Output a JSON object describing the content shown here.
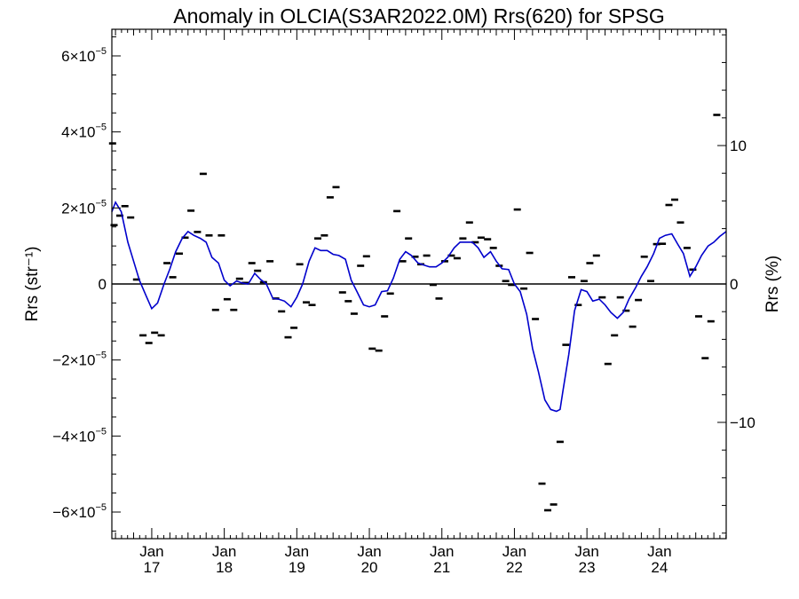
{
  "chart_data": {
    "type": "scatter",
    "title": "Anomaly in OLCIA(S3AR2022.0M) Rrs(620) for SPSG",
    "ylabel_left": "Rrs (str⁻¹)",
    "ylabel_right": "Rrs (%)",
    "x_unit": "decimal year",
    "xlim": [
      2016.45,
      2024.92
    ],
    "ylim_left": [
      -6.7e-05,
      6.7e-05
    ],
    "ylim_right": [
      -18.4,
      18.4
    ],
    "x_ticks": [
      {
        "x": 2017.0,
        "top": "Jan",
        "bottom": "17"
      },
      {
        "x": 2018.0,
        "top": "Jan",
        "bottom": "18"
      },
      {
        "x": 2019.0,
        "top": "Jan",
        "bottom": "19"
      },
      {
        "x": 2020.0,
        "top": "Jan",
        "bottom": "20"
      },
      {
        "x": 2021.0,
        "top": "Jan",
        "bottom": "21"
      },
      {
        "x": 2022.0,
        "top": "Jan",
        "bottom": "22"
      },
      {
        "x": 2023.0,
        "top": "Jan",
        "bottom": "23"
      },
      {
        "x": 2024.0,
        "top": "Jan",
        "bottom": "24"
      }
    ],
    "y_ticks_left": [
      {
        "value": 6e-05,
        "mant": "6×10",
        "exp": "−5"
      },
      {
        "value": 4e-05,
        "mant": "4×10",
        "exp": "−5"
      },
      {
        "value": 2e-05,
        "mant": "2×10",
        "exp": "−5"
      },
      {
        "value": 0,
        "mant": "0",
        "exp": ""
      },
      {
        "value": -2e-05,
        "mant": "−2×10",
        "exp": "−5"
      },
      {
        "value": -4e-05,
        "mant": "−4×10",
        "exp": "−5"
      },
      {
        "value": -6e-05,
        "mant": "−6×10",
        "exp": "−5"
      }
    ],
    "y_ticks_right": [
      {
        "value": 10,
        "label": "10"
      },
      {
        "value": 0,
        "label": "0"
      },
      {
        "value": -10,
        "label": "−10"
      }
    ],
    "series": [
      {
        "type": "scatter",
        "marker": "dash",
        "color": "#000000",
        "points": [
          [
            2016.46,
            3.7e-05
          ],
          [
            2016.48,
            1.55e-05
          ],
          [
            2016.56,
            1.8e-05
          ],
          [
            2016.63,
            2.05e-05
          ],
          [
            2016.71,
            1.75e-05
          ],
          [
            2016.79,
            1.2e-06
          ],
          [
            2016.88,
            -1.35e-05
          ],
          [
            2016.96,
            -1.55e-05
          ],
          [
            2017.04,
            -1.28e-05
          ],
          [
            2017.13,
            -1.35e-05
          ],
          [
            2017.21,
            5.5e-06
          ],
          [
            2017.29,
            1.8e-06
          ],
          [
            2017.38,
            8e-06
          ],
          [
            2017.46,
            1.22e-05
          ],
          [
            2017.54,
            1.93e-05
          ],
          [
            2017.63,
            1.37e-05
          ],
          [
            2017.71,
            2.9e-05
          ],
          [
            2017.79,
            1.28e-05
          ],
          [
            2017.88,
            -6.8e-06
          ],
          [
            2017.96,
            1.28e-05
          ],
          [
            2018.04,
            -4e-06
          ],
          [
            2018.13,
            -6.8e-06
          ],
          [
            2018.21,
            1.4e-06
          ],
          [
            2018.29,
            3e-07
          ],
          [
            2018.38,
            5.5e-06
          ],
          [
            2018.46,
            3.5e-06
          ],
          [
            2018.54,
            5e-07
          ],
          [
            2018.63,
            6e-06
          ],
          [
            2018.71,
            -3.8e-06
          ],
          [
            2018.79,
            -7.2e-06
          ],
          [
            2018.88,
            -1.4e-05
          ],
          [
            2018.96,
            -1.15e-05
          ],
          [
            2019.04,
            5.2e-06
          ],
          [
            2019.13,
            -4.8e-06
          ],
          [
            2019.21,
            -5.5e-06
          ],
          [
            2019.29,
            1.2e-05
          ],
          [
            2019.38,
            1.28e-05
          ],
          [
            2019.46,
            2.28e-05
          ],
          [
            2019.54,
            2.55e-05
          ],
          [
            2019.63,
            -2.2e-06
          ],
          [
            2019.71,
            -4.5e-06
          ],
          [
            2019.79,
            -7.8e-06
          ],
          [
            2019.88,
            4.8e-06
          ],
          [
            2019.96,
            7.3e-06
          ],
          [
            2020.04,
            -1.7e-05
          ],
          [
            2020.13,
            -1.75e-05
          ],
          [
            2020.21,
            -8.5e-06
          ],
          [
            2020.29,
            -2.5e-06
          ],
          [
            2020.38,
            1.92e-05
          ],
          [
            2020.46,
            6e-06
          ],
          [
            2020.54,
            1.2e-05
          ],
          [
            2020.63,
            7.2e-06
          ],
          [
            2020.71,
            5.2e-06
          ],
          [
            2020.79,
            7.5e-06
          ],
          [
            2020.88,
            -2e-07
          ],
          [
            2020.96,
            -3.8e-06
          ],
          [
            2021.04,
            6e-06
          ],
          [
            2021.13,
            7.5e-06
          ],
          [
            2021.21,
            6.8e-06
          ],
          [
            2021.29,
            1.2e-05
          ],
          [
            2021.38,
            1.62e-05
          ],
          [
            2021.46,
            1.1e-05
          ],
          [
            2021.54,
            1.22e-05
          ],
          [
            2021.63,
            1.18e-05
          ],
          [
            2021.71,
            9.5e-06
          ],
          [
            2021.79,
            4.8e-06
          ],
          [
            2021.88,
            8e-07
          ],
          [
            2021.96,
            -2e-07
          ],
          [
            2022.04,
            1.96e-05
          ],
          [
            2022.13,
            -1.2e-06
          ],
          [
            2022.21,
            8.2e-06
          ],
          [
            2022.29,
            -9.2e-06
          ],
          [
            2022.38,
            -5.25e-05
          ],
          [
            2022.46,
            -5.95e-05
          ],
          [
            2022.54,
            -5.8e-05
          ],
          [
            2022.63,
            -4.15e-05
          ],
          [
            2022.71,
            -1.6e-05
          ],
          [
            2022.79,
            1.8e-06
          ],
          [
            2022.88,
            -5.5e-06
          ],
          [
            2022.96,
            8e-07
          ],
          [
            2023.04,
            5.5e-06
          ],
          [
            2023.13,
            7.5e-06
          ],
          [
            2023.21,
            -3.5e-06
          ],
          [
            2023.29,
            -2.1e-05
          ],
          [
            2023.38,
            -1.35e-05
          ],
          [
            2023.46,
            -3.5e-06
          ],
          [
            2023.54,
            -7e-06
          ],
          [
            2023.63,
            -1.12e-05
          ],
          [
            2023.71,
            -4.2e-06
          ],
          [
            2023.79,
            7.2e-06
          ],
          [
            2023.88,
            8e-07
          ],
          [
            2023.96,
            1.05e-05
          ],
          [
            2024.04,
            1.06e-05
          ],
          [
            2024.13,
            2.08e-05
          ],
          [
            2024.21,
            2.22e-05
          ],
          [
            2024.29,
            1.62e-05
          ],
          [
            2024.38,
            9.5e-06
          ],
          [
            2024.46,
            3.8e-06
          ],
          [
            2024.54,
            -8.5e-06
          ],
          [
            2024.63,
            -1.95e-05
          ],
          [
            2024.71,
            -9.8e-06
          ],
          [
            2024.79,
            4.45e-05
          ]
        ]
      },
      {
        "type": "line",
        "color": "#0000cc",
        "points": [
          [
            2016.45,
            1.9e-05
          ],
          [
            2016.5,
            2.15e-05
          ],
          [
            2016.58,
            1.9e-05
          ],
          [
            2016.67,
            1.1e-05
          ],
          [
            2016.75,
            6e-06
          ],
          [
            2016.83,
            1e-06
          ],
          [
            2016.92,
            -3e-06
          ],
          [
            2017.0,
            -6.5e-06
          ],
          [
            2017.08,
            -5e-06
          ],
          [
            2017.17,
            0.0
          ],
          [
            2017.25,
            4e-06
          ],
          [
            2017.33,
            8.5e-06
          ],
          [
            2017.42,
            1.2e-05
          ],
          [
            2017.5,
            1.38e-05
          ],
          [
            2017.58,
            1.28e-05
          ],
          [
            2017.67,
            1.2e-05
          ],
          [
            2017.75,
            1.1e-05
          ],
          [
            2017.83,
            7e-06
          ],
          [
            2017.92,
            5.5e-06
          ],
          [
            2018.0,
            1e-06
          ],
          [
            2018.08,
            -5e-07
          ],
          [
            2018.17,
            8e-07
          ],
          [
            2018.25,
            2e-07
          ],
          [
            2018.33,
            0.0
          ],
          [
            2018.42,
            2.8e-06
          ],
          [
            2018.5,
            1.2e-06
          ],
          [
            2018.58,
            0.0
          ],
          [
            2018.67,
            -3.8e-06
          ],
          [
            2018.75,
            -4e-06
          ],
          [
            2018.83,
            -4.5e-06
          ],
          [
            2018.92,
            -6e-06
          ],
          [
            2019.0,
            -3.5e-06
          ],
          [
            2019.08,
            0.0
          ],
          [
            2019.17,
            6e-06
          ],
          [
            2019.25,
            9.5e-06
          ],
          [
            2019.33,
            8.8e-06
          ],
          [
            2019.42,
            8.8e-06
          ],
          [
            2019.5,
            7.8e-06
          ],
          [
            2019.58,
            7.5e-06
          ],
          [
            2019.67,
            6.5e-06
          ],
          [
            2019.75,
            1e-06
          ],
          [
            2019.83,
            -2e-06
          ],
          [
            2019.92,
            -5.5e-06
          ],
          [
            2020.0,
            -6e-06
          ],
          [
            2020.08,
            -5.5e-06
          ],
          [
            2020.17,
            -2e-06
          ],
          [
            2020.25,
            -1.8e-06
          ],
          [
            2020.33,
            1.5e-06
          ],
          [
            2020.42,
            6.5e-06
          ],
          [
            2020.5,
            8.5e-06
          ],
          [
            2020.58,
            7.5e-06
          ],
          [
            2020.67,
            5.5e-06
          ],
          [
            2020.75,
            5e-06
          ],
          [
            2020.83,
            4.5e-06
          ],
          [
            2020.92,
            4.5e-06
          ],
          [
            2021.0,
            5.5e-06
          ],
          [
            2021.08,
            7e-06
          ],
          [
            2021.17,
            9.5e-06
          ],
          [
            2021.25,
            1.1e-05
          ],
          [
            2021.33,
            1.1e-05
          ],
          [
            2021.42,
            1.1e-05
          ],
          [
            2021.5,
            9.5e-06
          ],
          [
            2021.58,
            7e-06
          ],
          [
            2021.67,
            8.5e-06
          ],
          [
            2021.75,
            6e-06
          ],
          [
            2021.83,
            4e-06
          ],
          [
            2021.92,
            3.8e-06
          ],
          [
            2022.0,
            0.0
          ],
          [
            2022.08,
            -2e-06
          ],
          [
            2022.17,
            -8e-06
          ],
          [
            2022.25,
            -1.7e-05
          ],
          [
            2022.33,
            -2.3e-05
          ],
          [
            2022.42,
            -3.05e-05
          ],
          [
            2022.5,
            -3.3e-05
          ],
          [
            2022.58,
            -3.35e-05
          ],
          [
            2022.63,
            -3.3e-05
          ],
          [
            2022.67,
            -2.8e-05
          ],
          [
            2022.75,
            -1.85e-05
          ],
          [
            2022.83,
            -7e-06
          ],
          [
            2022.92,
            -1.5e-06
          ],
          [
            2023.0,
            -2e-06
          ],
          [
            2023.08,
            -4.5e-06
          ],
          [
            2023.17,
            -4e-06
          ],
          [
            2023.25,
            -5.5e-06
          ],
          [
            2023.33,
            -7.5e-06
          ],
          [
            2023.42,
            -9e-06
          ],
          [
            2023.5,
            -7.5e-06
          ],
          [
            2023.58,
            -4e-06
          ],
          [
            2023.67,
            -1e-06
          ],
          [
            2023.75,
            2e-06
          ],
          [
            2023.83,
            4.5e-06
          ],
          [
            2023.92,
            8e-06
          ],
          [
            2024.0,
            1.2e-05
          ],
          [
            2024.08,
            1.28e-05
          ],
          [
            2024.17,
            1.32e-05
          ],
          [
            2024.25,
            1.05e-05
          ],
          [
            2024.33,
            8e-06
          ],
          [
            2024.42,
            2e-06
          ],
          [
            2024.5,
            4.5e-06
          ],
          [
            2024.58,
            7.5e-06
          ],
          [
            2024.67,
            1e-05
          ],
          [
            2024.75,
            1.1e-05
          ],
          [
            2024.83,
            1.25e-05
          ],
          [
            2024.92,
            1.38e-05
          ]
        ]
      }
    ],
    "zero_line": true,
    "grid": false,
    "legend": "none"
  }
}
